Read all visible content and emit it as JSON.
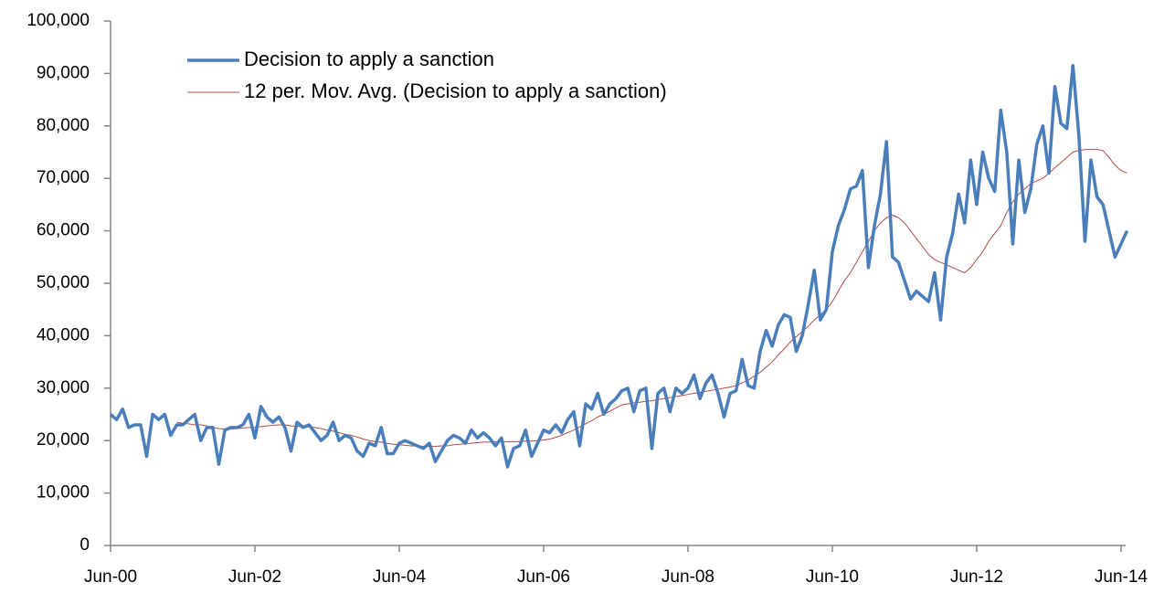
{
  "chart_data": {
    "type": "line",
    "categories": [
      "Jun-00",
      null,
      null,
      null,
      null,
      null,
      null,
      null,
      null,
      null,
      null,
      null,
      null,
      null,
      null,
      null,
      null,
      null,
      null,
      null,
      null,
      null,
      null,
      null,
      "Jun-02",
      null,
      null,
      null,
      null,
      null,
      null,
      null,
      null,
      null,
      null,
      null,
      null,
      null,
      null,
      null,
      null,
      null,
      null,
      null,
      null,
      null,
      null,
      null,
      "Jun-04",
      null,
      null,
      null,
      null,
      null,
      null,
      null,
      null,
      null,
      null,
      null,
      null,
      null,
      null,
      null,
      null,
      null,
      null,
      null,
      null,
      null,
      null,
      null,
      "Jun-06",
      null,
      null,
      null,
      null,
      null,
      null,
      null,
      null,
      null,
      null,
      null,
      null,
      null,
      null,
      null,
      null,
      null,
      null,
      null,
      null,
      null,
      null,
      null,
      "Jun-08",
      null,
      null,
      null,
      null,
      null,
      null,
      null,
      null,
      null,
      null,
      null,
      null,
      null,
      null,
      null,
      null,
      null,
      null,
      null,
      null,
      null,
      null,
      null,
      "Jun-10",
      null,
      null,
      null,
      null,
      null,
      null,
      null,
      null,
      null,
      null,
      null,
      null,
      null,
      null,
      null,
      null,
      null,
      null,
      null,
      null,
      null,
      null,
      null,
      "Jun-12",
      null,
      null,
      null,
      null,
      null,
      null,
      null,
      null,
      null,
      null,
      null,
      null,
      null,
      null,
      null,
      null,
      null,
      null,
      null,
      null,
      null,
      null,
      null,
      "Jun-14",
      null
    ],
    "series": [
      {
        "name": "Decision to apply a sanction",
        "color": "#4a7ebb",
        "width": 3.5,
        "values": [
          25000,
          24000,
          26000,
          22500,
          23000,
          23000,
          17000,
          25000,
          24000,
          25000,
          21000,
          23000,
          23000,
          24000,
          25000,
          20000,
          22500,
          22500,
          15500,
          22000,
          22500,
          22500,
          23000,
          25000,
          20500,
          26500,
          24500,
          23500,
          24500,
          22500,
          18000,
          23500,
          22500,
          23000,
          21500,
          20000,
          21000,
          23500,
          20000,
          21000,
          20500,
          18000,
          17000,
          19500,
          19000,
          22500,
          17500,
          17500,
          19500,
          20000,
          19500,
          19000,
          18500,
          19500,
          16000,
          18000,
          20000,
          21000,
          20500,
          19500,
          22000,
          20500,
          21500,
          20500,
          19000,
          20500,
          15000,
          18500,
          19000,
          22000,
          17000,
          19500,
          22000,
          21500,
          23000,
          21500,
          24000,
          25500,
          19000,
          27000,
          26000,
          29000,
          25000,
          27000,
          28000,
          29500,
          30000,
          25500,
          29500,
          30000,
          18500,
          29000,
          30000,
          25500,
          30000,
          29000,
          30000,
          32500,
          28000,
          31000,
          32500,
          29000,
          24500,
          29000,
          29500,
          35500,
          30500,
          30000,
          37000,
          41000,
          38000,
          42000,
          44000,
          43500,
          37000,
          40000,
          46000,
          52500,
          43000,
          45000,
          56000,
          61000,
          64000,
          68000,
          68500,
          71500,
          53000,
          61000,
          67000,
          77000,
          55000,
          54000,
          50500,
          47000,
          48500,
          47500,
          46500,
          52000,
          43000,
          55000,
          59500,
          67000,
          61500,
          73500,
          65000,
          75000,
          70000,
          67500,
          83000,
          75000,
          57500,
          73500,
          63500,
          68000,
          76500,
          80000,
          71000,
          87500,
          80500,
          79500,
          91500,
          78000,
          58000,
          73500,
          66500,
          65000,
          60000,
          55000,
          57500,
          60000
        ]
      },
      {
        "name": "12 per. Mov. Avg. (Decision to apply a sanction)",
        "color": "#b24a46",
        "width": 1,
        "values": [
          null,
          null,
          null,
          null,
          null,
          null,
          null,
          null,
          null,
          null,
          null,
          23500,
          23300,
          23200,
          23000,
          23000,
          22800,
          22500,
          22300,
          22200,
          22200,
          22300,
          22400,
          22500,
          22500,
          22700,
          22800,
          22900,
          23000,
          23000,
          22800,
          22700,
          22700,
          22600,
          22500,
          22300,
          22000,
          21800,
          21500,
          21200,
          21000,
          20700,
          20300,
          20000,
          19800,
          19700,
          19500,
          19300,
          19200,
          19100,
          19000,
          19000,
          18900,
          18900,
          18900,
          19000,
          19000,
          19200,
          19300,
          19400,
          19500,
          19600,
          19700,
          19700,
          19800,
          19800,
          19800,
          19800,
          19800,
          19900,
          19900,
          20000,
          20100,
          20300,
          20600,
          21000,
          21500,
          22000,
          22600,
          23200,
          23800,
          24500,
          25000,
          25600,
          26200,
          26800,
          27000,
          27200,
          27300,
          27500,
          27600,
          27800,
          28000,
          28200,
          28400,
          28600,
          28800,
          29000,
          29200,
          29400,
          29600,
          29800,
          30000,
          30200,
          30500,
          31000,
          31500,
          32300,
          33000,
          34000,
          35000,
          36300,
          37500,
          38800,
          39800,
          40800,
          41800,
          43000,
          44000,
          45000,
          46500,
          48500,
          50500,
          52000,
          54000,
          56000,
          58000,
          60000,
          61500,
          62500,
          63000,
          62500,
          61500,
          60000,
          58500,
          57000,
          55500,
          54500,
          54000,
          53500,
          53000,
          52500,
          52000,
          53000,
          54500,
          56000,
          58000,
          59500,
          61000,
          63500,
          65500,
          67000,
          68000,
          69000,
          69500,
          70000,
          71000,
          72000,
          73000,
          74000,
          75000,
          75300,
          75500,
          75500,
          75500,
          75300,
          74000,
          72500,
          71500,
          71000
        ]
      }
    ],
    "ylim": [
      0,
      100000
    ],
    "yticks": [
      0,
      {
        "value": 10000,
        "label": "10,000"
      },
      {
        "value": 20000,
        "label": "20,000"
      },
      {
        "value": 30000,
        "label": "30,000"
      },
      {
        "value": 40000,
        "label": "40,000"
      },
      {
        "value": 50000,
        "label": "50,000"
      },
      {
        "value": 60000,
        "label": "60,000"
      },
      {
        "value": 70000,
        "label": "70,000"
      },
      {
        "value": 80000,
        "label": "80,000"
      },
      {
        "value": 90000,
        "label": "90,000"
      },
      {
        "value": 100000,
        "label": "100,000"
      }
    ],
    "grid": false,
    "legend": "upper-left"
  }
}
